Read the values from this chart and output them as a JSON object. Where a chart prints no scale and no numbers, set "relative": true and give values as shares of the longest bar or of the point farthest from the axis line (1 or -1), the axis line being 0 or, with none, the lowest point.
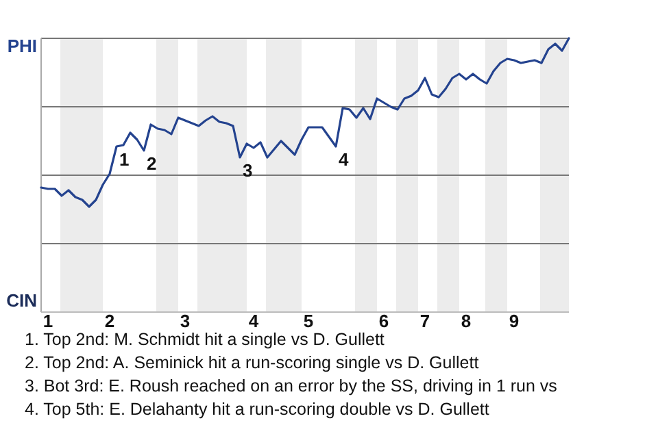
{
  "chart_data": {
    "type": "line",
    "relative": true,
    "categories": [
      null,
      "1",
      null,
      null,
      null,
      null,
      null,
      null,
      null,
      null,
      "2",
      null,
      null,
      null,
      null,
      null,
      null,
      null,
      null,
      null,
      null,
      "3",
      null,
      null,
      null,
      null,
      null,
      null,
      null,
      null,
      null,
      "4",
      null,
      null,
      null,
      null,
      null,
      null,
      null,
      "5",
      null,
      null,
      null,
      null,
      null,
      null,
      null,
      null,
      null,
      null,
      "6",
      null,
      null,
      null,
      null,
      null,
      "7",
      null,
      null,
      null,
      null,
      null,
      "8",
      null,
      null,
      null,
      null,
      null,
      null,
      "9",
      null,
      null,
      null,
      null,
      null,
      null,
      null,
      null
    ],
    "series": [
      {
        "color": "#24438f",
        "values": [
          0.455,
          0.45,
          0.45,
          0.425,
          0.445,
          0.42,
          0.41,
          0.385,
          0.41,
          0.465,
          0.505,
          0.605,
          0.61,
          0.655,
          0.63,
          0.59,
          0.685,
          0.67,
          0.665,
          0.65,
          0.71,
          0.7,
          0.69,
          0.68,
          0.7,
          0.715,
          0.695,
          0.69,
          0.68,
          0.565,
          0.615,
          0.6,
          0.62,
          0.565,
          0.595,
          0.625,
          0.6,
          0.575,
          0.63,
          0.675,
          0.675,
          0.675,
          0.64,
          0.605,
          0.745,
          0.74,
          0.71,
          0.745,
          0.705,
          0.78,
          0.765,
          0.75,
          0.74,
          0.78,
          0.79,
          0.81,
          0.855,
          0.795,
          0.785,
          0.815,
          0.855,
          0.87,
          0.85,
          0.87,
          0.85,
          0.835,
          0.88,
          0.91,
          0.925,
          0.92,
          0.91,
          0.915,
          0.92,
          0.91,
          0.96,
          0.98,
          0.955,
          1
        ]
      }
    ],
    "ref_lines": [
      {
        "axis": "y",
        "value": 0.25,
        "color": "#777777"
      },
      {
        "axis": "y",
        "value": 0.5,
        "color": "#777777"
      },
      {
        "axis": "y",
        "value": 0.75,
        "color": "#777777"
      },
      {
        "axis": "y",
        "value": 1,
        "color": "#777777"
      }
    ],
    "annotations": [
      "PHI",
      "CIN",
      "1",
      "2",
      "3",
      "4",
      "1. Top 2nd: M. Schmidt hit a single vs D. Gullett",
      "2. Top 2nd: A. Seminick hit a run-scoring single vs D. Gullett",
      "3. Bot 3rd: E. Roush reached on an error by the SS, driving in 1 run vs",
      "4. Top 5th: E. Delahanty hit a run-scoring double vs D. Gullett"
    ]
  }
}
